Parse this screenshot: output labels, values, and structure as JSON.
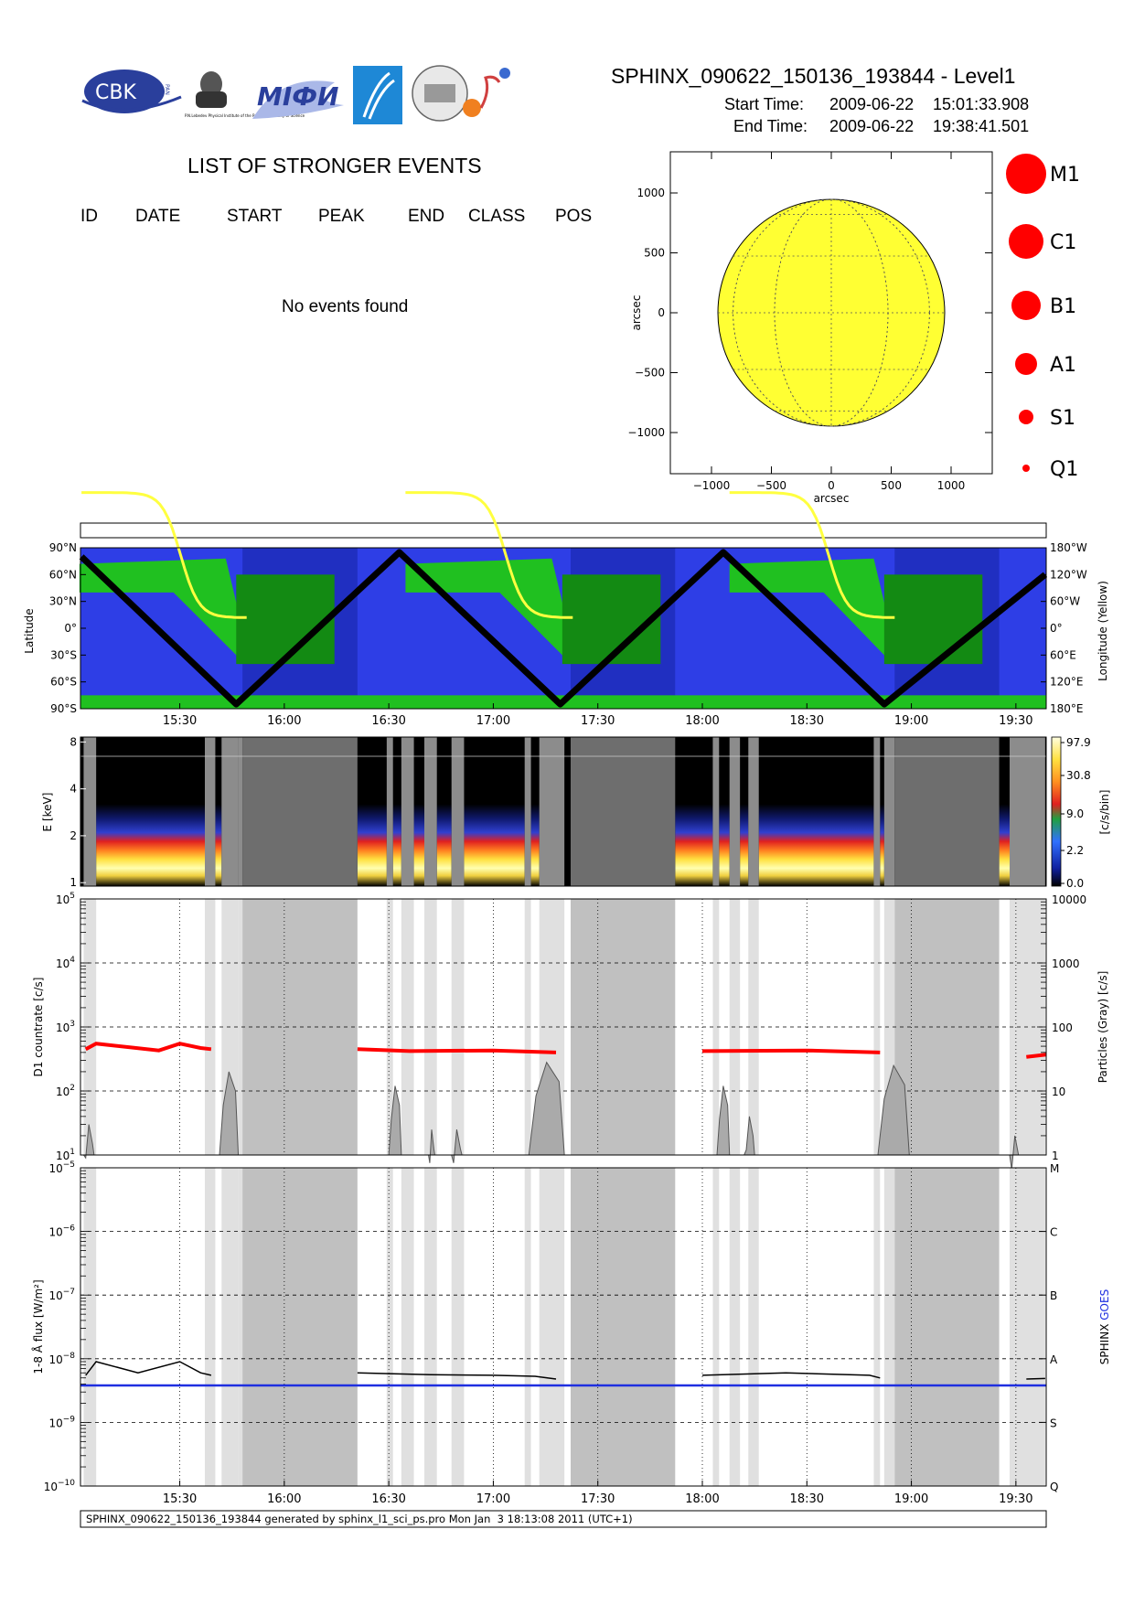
{
  "header": {
    "title": "SPHINX_090622_150136_193844 - Level1",
    "start_label": "Start Time:",
    "start_date": "2009-06-22",
    "start_time": "15:01:33.908",
    "end_label": "End Time:",
    "end_date": "2009-06-22",
    "end_time": "19:38:41.501"
  },
  "logos": {
    "cbk": "CBK",
    "pan": "PAN",
    "lebedev": "P.N.Lebedev Physical Institute of the Russian Academy of Science",
    "mifi": "MIФИ"
  },
  "events": {
    "title": "LIST OF STRONGER EVENTS",
    "columns": [
      "ID",
      "DATE",
      "START",
      "PEAK",
      "END",
      "CLASS",
      "POS"
    ],
    "empty_message": "No events found"
  },
  "sun_map": {
    "xlabel": "arcsec",
    "ylabel": "arcsec",
    "x_ticks": [
      "-1000",
      "-500",
      "0",
      "500",
      "1000"
    ],
    "y_ticks": [
      "1000",
      "500",
      "0",
      "-500",
      "-1000"
    ],
    "sun_color": "#ffff33"
  },
  "class_legend": [
    "M1",
    "C1",
    "B1",
    "A1",
    "S1",
    "Q1"
  ],
  "chart_data": [
    {
      "type": "line",
      "panel": "orbit",
      "ylabel": "Latitude",
      "ylabel_right": "Longitude (Yellow)",
      "y_ticks": [
        "90°N",
        "60°N",
        "30°N",
        "0°",
        "30°S",
        "60°S",
        "90°S"
      ],
      "y_ticks_right": [
        "180°W",
        "120°W",
        "60°W",
        "0°",
        "60°E",
        "120°E",
        "180°E"
      ],
      "x_ticks": [
        "15:30",
        "16:00",
        "16:30",
        "17:00",
        "17:30",
        "18:00",
        "18:30",
        "19:00",
        "19:30"
      ],
      "series": [
        {
          "values": [
            [
              15.03,
              80
            ],
            [
              15.77,
              -85
            ],
            [
              16.55,
              85
            ],
            [
              17.32,
              -85
            ],
            [
              18.1,
              85
            ],
            [
              18.87,
              -85
            ],
            [
              19.64,
              60
            ]
          ]
        }
      ]
    },
    {
      "type": "heatmap",
      "panel": "spectrogram",
      "ylabel": "E [keV]",
      "colorbar_label": "[c/s/bin]",
      "y_ticks": [
        "8",
        "4",
        "2",
        "1"
      ],
      "colorbar_ticks": [
        "97.9",
        "30.8",
        "9.0",
        "2.2",
        "0.0"
      ]
    },
    {
      "type": "line",
      "panel": "countrate",
      "ylabel": "D1 countrate [c/s]",
      "ylabel_right": "Particles (Gray) [c/s]",
      "y_ticks": [
        "10^5",
        "10^4",
        "10^3",
        "10^2",
        "10^1"
      ],
      "y_ticks_right": [
        "10000",
        "1000",
        "100",
        "10",
        "1"
      ],
      "series": [
        {
          "values": [
            [
              15.05,
              450
            ],
            [
              15.1,
              550
            ],
            [
              15.4,
              430
            ],
            [
              15.5,
              550
            ],
            [
              15.6,
              470
            ],
            [
              15.65,
              450
            ]
          ]
        },
        {
          "values": [
            [
              16.35,
              450
            ],
            [
              16.6,
              420
            ],
            [
              17.0,
              430
            ],
            [
              17.3,
              400
            ]
          ]
        },
        {
          "values": [
            [
              18.0,
              420
            ],
            [
              18.5,
              430
            ],
            [
              18.85,
              400
            ]
          ]
        }
      ]
    },
    {
      "type": "line",
      "panel": "flux",
      "ylabel": "1-8 Å flux [W/m²]",
      "ylabel_right_parts": [
        "SPHINX",
        "GOES"
      ],
      "y_ticks": [
        "10^-5",
        "10^-6",
        "10^-7",
        "10^-8",
        "10^-9",
        "10^-10"
      ],
      "class_ticks": [
        "M",
        "C",
        "B",
        "A",
        "S",
        "Q"
      ],
      "x_ticks": [
        "15:30",
        "16:00",
        "16:30",
        "17:00",
        "17:30",
        "18:00",
        "18:30",
        "19:00",
        "19:30"
      ],
      "goes_level": 3.8e-09
    }
  ],
  "footer": {
    "text": "SPHINX_090622_150136_193844 generated by sphinx_l1_sci_ps.pro Mon Jan  3 18:13:08 2011 (UTC+1)"
  },
  "colors": {
    "goes": "#1f2fe0",
    "flare_dot": "#ff0000",
    "gray_band": "#c0c0c0",
    "light_band": "#e0e0e0"
  }
}
